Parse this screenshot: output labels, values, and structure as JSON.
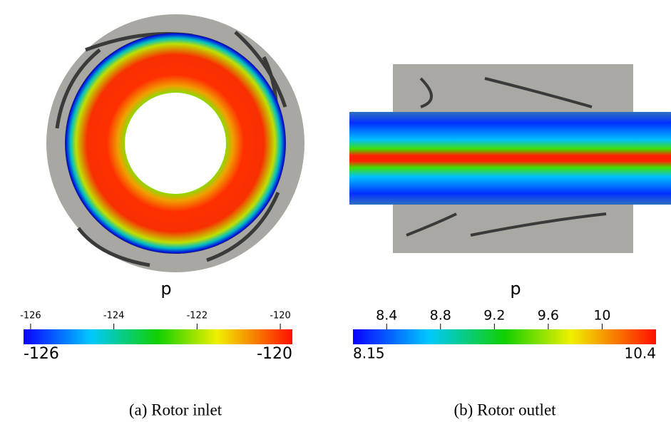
{
  "panels": [
    {
      "colorbar": {
        "label": "p",
        "range": [
          {
            "value": -126.17,
            "label": "-126"
          },
          {
            "value": -119.71,
            "label": "-120"
          }
        ],
        "ticks": [
          -126,
          -124,
          -122,
          -120
        ]
      },
      "caption": "(a) Rotor inlet"
    },
    {
      "colorbar": {
        "label": "p",
        "range": [
          8.15,
          10.4
        ],
        "ticks": [
          8.4,
          8.8,
          9.2,
          9.6,
          10
        ]
      },
      "caption": "(b) Rotor outlet"
    }
  ]
}
